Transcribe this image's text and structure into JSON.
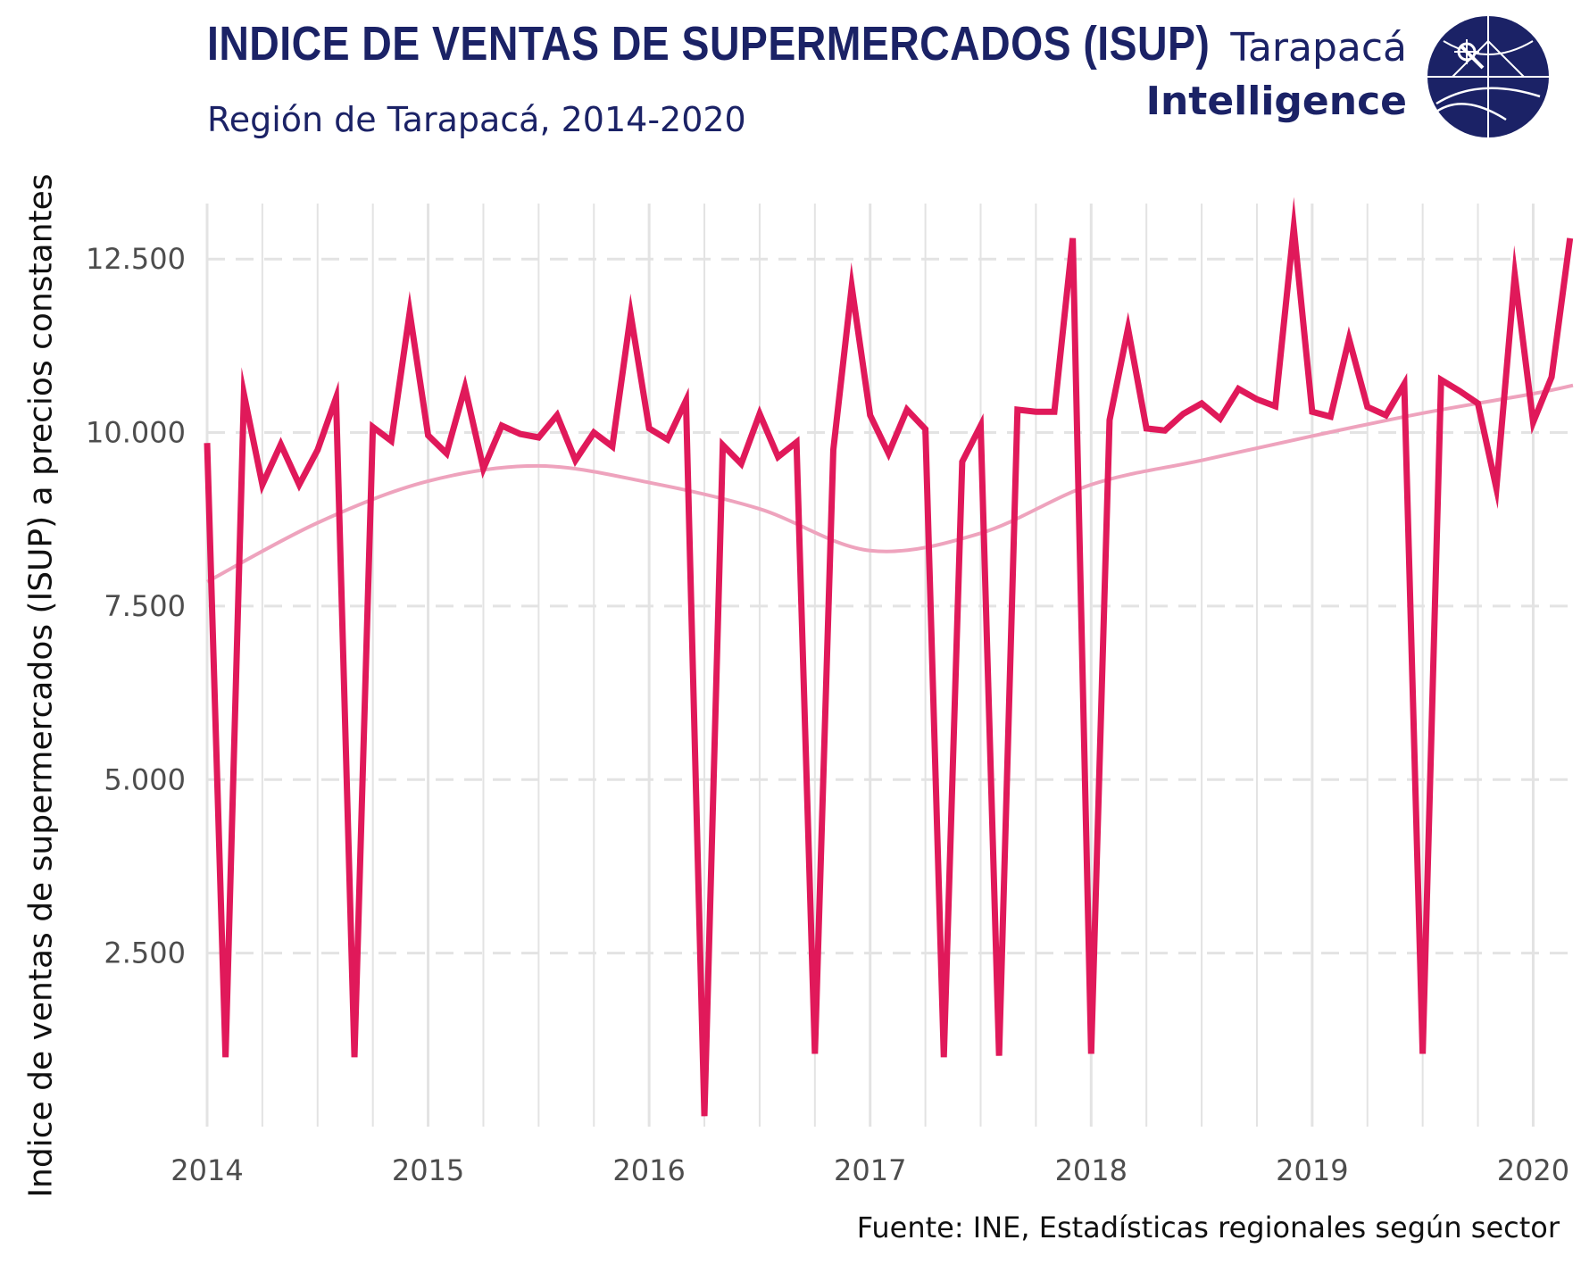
{
  "header": {
    "title": "INDICE DE VENTAS DE SUPERMERCADOS (ISUP)",
    "subtitle": "Región de Tarapacá, 2014-2020"
  },
  "brand": {
    "line1": "Tarapacá",
    "line2": "Intelligence",
    "logo_icon": "globe-telescope-logo-icon"
  },
  "footer": {
    "source": "Fuente: INE, Estadísticas regionales según sector"
  },
  "colors": {
    "title": "#1b2266",
    "series": "#e0195a",
    "trend": "#eea3bd",
    "grid": "#e3e3e3",
    "text": "#4d4d4d"
  },
  "chart_data": {
    "type": "line",
    "title": "INDICE DE VENTAS DE SUPERMERCADOS (ISUP)",
    "subtitle": "Región de Tarapacá, 2014-2020",
    "xlabel": "",
    "ylabel": "Indice de ventas de supermercados (ISUP) a precios constantes",
    "ylim": [
      0,
      13300
    ],
    "xlim": [
      2014.0,
      2020.18
    ],
    "grid": true,
    "grid_y_style": "dashed",
    "legend": "none",
    "x_ticks": [
      {
        "value": 2014,
        "label": "2014"
      },
      {
        "value": 2015,
        "label": "2015"
      },
      {
        "value": 2016,
        "label": "2016"
      },
      {
        "value": 2017,
        "label": "2017"
      },
      {
        "value": 2018,
        "label": "2018"
      },
      {
        "value": 2019,
        "label": "2019"
      },
      {
        "value": 2020,
        "label": "2020"
      }
    ],
    "y_ticks": [
      {
        "value": 2500,
        "label": "2.500"
      },
      {
        "value": 5000,
        "label": "5.000"
      },
      {
        "value": 7500,
        "label": "7.500"
      },
      {
        "value": 10000,
        "label": "10.000"
      },
      {
        "value": 12500,
        "label": "12.500"
      }
    ],
    "x_start_date": "2014-01",
    "series": [
      {
        "name": "",
        "values": [
          9850,
          1000,
          10550,
          9250,
          9830,
          9250,
          9750,
          10500,
          1000,
          10080,
          9880,
          11730,
          9960,
          9700,
          10650,
          9480,
          10100,
          9980,
          9930,
          10250,
          9600,
          10000,
          9800,
          11700,
          10060,
          9900,
          10460,
          150,
          9820,
          9550,
          10270,
          9650,
          9860,
          1050,
          9750,
          12100,
          10250,
          9700,
          10330,
          10050,
          1000,
          9580,
          10100,
          1020,
          10330,
          10300,
          10300,
          12800,
          1050,
          10180,
          11500,
          10060,
          10030,
          10270,
          10420,
          10200,
          10630,
          10480,
          10380,
          12950,
          10300,
          10230,
          11350,
          10370,
          10250,
          10700,
          1050,
          10760,
          10600,
          10420,
          9200,
          12270,
          10150,
          10800,
          12800
        ]
      }
    ],
    "trend": {
      "name": "",
      "x": [
        2014.0,
        2014.5,
        2015.0,
        2015.5,
        2016.0,
        2016.5,
        2017.0,
        2017.5,
        2018.0,
        2018.5,
        2019.0,
        2019.5,
        2020.0,
        2020.18
      ],
      "values": [
        7850,
        8700,
        9300,
        9520,
        9280,
        8900,
        8300,
        8550,
        9250,
        9600,
        9950,
        10280,
        10560,
        10680
      ]
    }
  }
}
